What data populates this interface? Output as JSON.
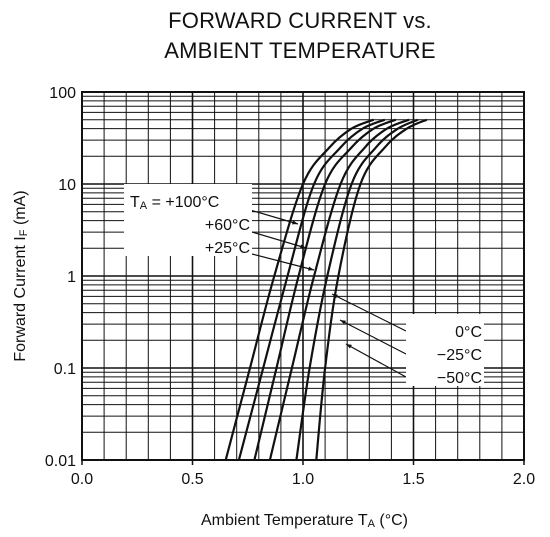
{
  "chart_data": {
    "type": "line",
    "title_lines": [
      "FORWARD CURRENT vs.",
      "AMBIENT TEMPERATURE"
    ],
    "xlabel": {
      "main": "Ambient Temperature  T",
      "sub": "A",
      "suffix": " (°C)"
    },
    "ylabel": {
      "main": "Forward Current  I",
      "sub": "F",
      "suffix": " (mA)"
    },
    "xlim": [
      0.0,
      2.0
    ],
    "ylim": [
      0.01,
      100
    ],
    "yscale": "log",
    "x_ticks": [
      "0.0",
      "0.5",
      "1.0",
      "1.5",
      "2.0"
    ],
    "y_ticks": [
      "0.01",
      "0.1",
      "1",
      "10",
      "100"
    ],
    "grid": true,
    "series": [
      {
        "name": "T_A = +100°C",
        "x": [
          0.65,
          0.76,
          0.87,
          1.0,
          1.12,
          1.22,
          1.32
        ],
        "y": [
          0.01,
          0.1,
          1,
          10,
          25,
          40,
          50
        ]
      },
      {
        "name": "+60°C",
        "x": [
          0.71,
          0.82,
          0.93,
          1.05,
          1.17,
          1.27,
          1.37
        ],
        "y": [
          0.01,
          0.1,
          1,
          10,
          25,
          40,
          50
        ]
      },
      {
        "name": "+25°C",
        "x": [
          0.78,
          0.88,
          0.98,
          1.1,
          1.22,
          1.32,
          1.42
        ],
        "y": [
          0.01,
          0.1,
          1,
          10,
          25,
          40,
          50
        ]
      },
      {
        "name": "0°C",
        "x": [
          0.85,
          0.95,
          1.05,
          1.17,
          1.28,
          1.38,
          1.48
        ],
        "y": [
          0.01,
          0.1,
          1,
          10,
          25,
          40,
          50
        ]
      },
      {
        "name": "−25°C",
        "x": [
          0.97,
          1.03,
          1.11,
          1.22,
          1.33,
          1.43,
          1.52
        ],
        "y": [
          0.01,
          0.1,
          1,
          10,
          25,
          40,
          50
        ]
      },
      {
        "name": "−50°C",
        "x": [
          1.06,
          1.1,
          1.16,
          1.26,
          1.37,
          1.47,
          1.56
        ],
        "y": [
          0.01,
          0.1,
          1,
          10,
          25,
          40,
          50
        ]
      }
    ],
    "annotations": {
      "left_group": [
        {
          "prefix": "T",
          "sub": "A",
          "text": " = +100°C"
        },
        {
          "text": "+60°C"
        },
        {
          "text": "+25°C"
        }
      ],
      "right_group": [
        {
          "text": "0°C"
        },
        {
          "text": "−25°C"
        },
        {
          "text": "−50°C"
        }
      ]
    }
  }
}
